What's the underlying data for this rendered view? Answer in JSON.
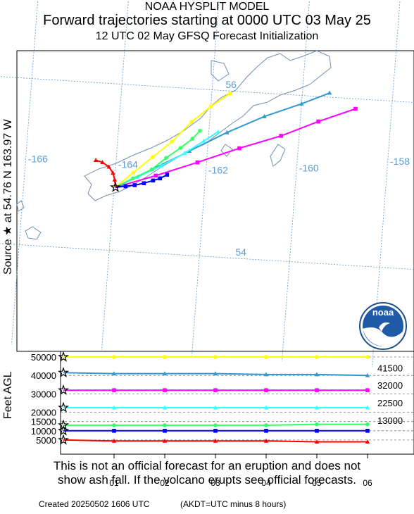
{
  "header": {
    "line1": "NOAA HYSPLIT MODEL",
    "line2": "Forward trajectories starting at 0000 UTC 03 May 25",
    "line3": "12 UTC 02 May     GFSQ  Forecast Initialization"
  },
  "side_label_source": "Source ★ at   54.76 N  163.97 W",
  "side_label_height": "Feet AGL",
  "map": {
    "lon_labels": [
      "-166",
      "-164",
      "-162",
      "-160",
      "-158"
    ],
    "lat_labels": [
      "56",
      "54"
    ],
    "source": {
      "lat": 54.76,
      "lon": -163.97
    },
    "logo_text": "noaa",
    "grid_color": "#5b9bd5",
    "coast_color": "#6f8faf"
  },
  "vertical_panel": {
    "left_ticks": [
      "50000",
      "40000",
      "30000",
      "20000",
      "15000",
      "10000",
      "5000"
    ],
    "right_labels": [
      "41500",
      "32000",
      "22500",
      "13000"
    ],
    "time_ticks": [
      "01",
      "02",
      "03",
      "04",
      "05",
      "06"
    ]
  },
  "chart_data": {
    "type": "line",
    "title": "Forward trajectories starting at 0000 UTC 03 May 25",
    "ylabel": "Feet AGL",
    "time_labels": [
      "01",
      "02",
      "03",
      "04",
      "05",
      "06"
    ],
    "series": [
      {
        "color": "#ffff00",
        "marker": "circle",
        "start_ft": 50000,
        "heights_ft": [
          50000,
          50000,
          50000,
          50000,
          50000,
          50000
        ],
        "track": [
          [
            -163.97,
            54.76
          ],
          [
            -163.6,
            54.95
          ],
          [
            -163.2,
            55.15
          ],
          [
            -162.8,
            55.35
          ],
          [
            -162.4,
            55.6
          ],
          [
            -162.0,
            55.8
          ],
          [
            -161.6,
            55.97
          ]
        ]
      },
      {
        "color": "#3399cc",
        "marker": "triangle",
        "start_ft": 41500,
        "heights_ft": [
          41000,
          41000,
          41000,
          40500,
          40500,
          40000
        ],
        "track": [
          [
            -163.97,
            54.76
          ],
          [
            -163.2,
            55.0
          ],
          [
            -162.4,
            55.25
          ],
          [
            -161.6,
            55.5
          ],
          [
            -160.8,
            55.72
          ],
          [
            -160.0,
            55.9
          ],
          [
            -159.4,
            56.05
          ]
        ]
      },
      {
        "color": "#ff00ff",
        "marker": "square",
        "start_ft": 32000,
        "heights_ft": [
          32000,
          32000,
          32000,
          32000,
          32000,
          32000
        ],
        "track": [
          [
            -163.97,
            54.76
          ],
          [
            -163.1,
            54.93
          ],
          [
            -162.2,
            55.12
          ],
          [
            -161.3,
            55.32
          ],
          [
            -160.4,
            55.5
          ],
          [
            -159.6,
            55.7
          ],
          [
            -158.8,
            55.88
          ]
        ]
      },
      {
        "color": "#33ffff",
        "marker": "triangle",
        "start_ft": 22500,
        "heights_ft": [
          22500,
          22500,
          22500,
          22500,
          22500,
          22500
        ],
        "track": [
          [
            -163.97,
            54.76
          ],
          [
            -163.5,
            54.9
          ],
          [
            -163.0,
            55.05
          ],
          [
            -162.5,
            55.22
          ],
          [
            -162.1,
            55.38
          ],
          [
            -161.8,
            55.5
          ]
        ]
      },
      {
        "color": "#33ff66",
        "marker": "circle",
        "start_ft": 13000,
        "heights_ft": [
          13000,
          13000,
          13000,
          13000,
          13500,
          13500
        ],
        "track": [
          [
            -163.97,
            54.76
          ],
          [
            -163.6,
            54.88
          ],
          [
            -163.2,
            55.0
          ],
          [
            -162.9,
            55.15
          ],
          [
            -162.6,
            55.28
          ],
          [
            -162.35,
            55.4
          ],
          [
            -162.2,
            55.5
          ]
        ]
      },
      {
        "color": "#0000ff",
        "marker": "square",
        "start_ft": 10000,
        "heights_ft": [
          10000,
          10000,
          10000,
          10000,
          10000,
          10000
        ],
        "track": [
          [
            -163.97,
            54.76
          ],
          [
            -163.75,
            54.78
          ],
          [
            -163.55,
            54.8
          ],
          [
            -163.35,
            54.83
          ],
          [
            -163.15,
            54.87
          ],
          [
            -163.0,
            54.9
          ],
          [
            -162.85,
            54.95
          ]
        ]
      },
      {
        "color": "#ff0000",
        "marker": "triangle",
        "start_ft": 5000,
        "heights_ft": [
          4500,
          4500,
          4500,
          4500,
          4000,
          4000
        ],
        "track": [
          [
            -163.97,
            54.76
          ],
          [
            -164.0,
            54.85
          ],
          [
            -164.05,
            54.93
          ],
          [
            -164.15,
            55.0
          ],
          [
            -164.3,
            55.05
          ],
          [
            -164.45,
            55.07
          ]
        ]
      }
    ]
  },
  "disclaimer": {
    "line1": "This is not an official forecast for an eruption and does not",
    "line2": "show ash fall. If the volcano erupts see official forecasts."
  },
  "footer": {
    "created": "Created 20250502 1606 UTC",
    "tz_note": "(AKDT=UTC minus 8 hours)"
  }
}
